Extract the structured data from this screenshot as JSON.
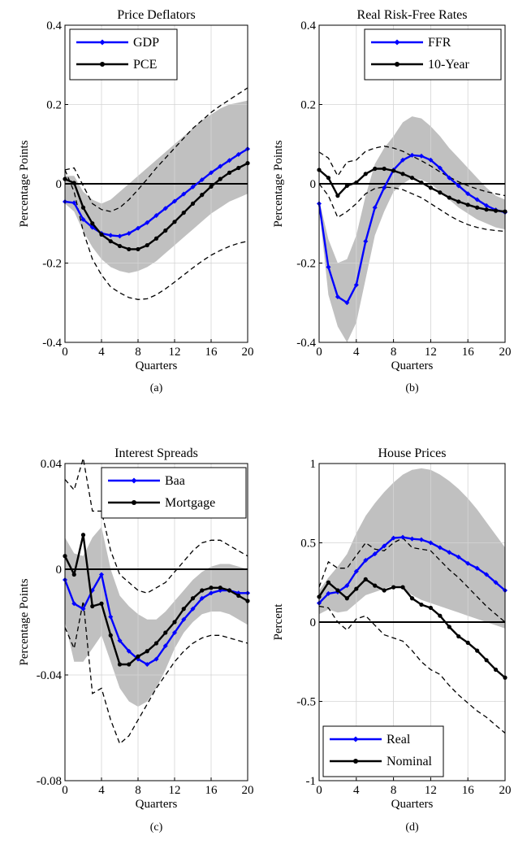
{
  "chart_data": [
    {
      "type": "line",
      "panel_caption": "(a)",
      "title": "Price Deflators",
      "xlabel": "Quarters",
      "ylabel": "Percentage Points",
      "xlim": [
        0,
        20
      ],
      "ylim": [
        -0.4,
        0.4
      ],
      "xticks": [
        0,
        4,
        8,
        12,
        16,
        20
      ],
      "yticks": [
        -0.4,
        -0.2,
        0,
        0.2,
        0.4
      ],
      "ytick_labels": [
        "-0.4",
        "-0.2",
        "0",
        "0.2",
        "0.4"
      ],
      "grid": true,
      "legend_position": "top-left",
      "x": [
        0,
        1,
        2,
        3,
        4,
        5,
        6,
        7,
        8,
        9,
        10,
        11,
        12,
        13,
        14,
        15,
        16,
        17,
        18,
        19,
        20
      ],
      "series": [
        {
          "name": "GDP",
          "color": "#0000ff",
          "marker": "diamond",
          "values": [
            -0.045,
            -0.048,
            -0.09,
            -0.11,
            -0.125,
            -0.13,
            -0.132,
            -0.125,
            -0.112,
            -0.098,
            -0.08,
            -0.062,
            -0.044,
            -0.026,
            -0.008,
            0.01,
            0.028,
            0.044,
            0.059,
            0.074,
            0.088
          ]
        },
        {
          "name": "PCE",
          "color": "#000000",
          "marker": "circle",
          "values": [
            0.012,
            0.002,
            -0.06,
            -0.1,
            -0.128,
            -0.145,
            -0.157,
            -0.165,
            -0.165,
            -0.155,
            -0.138,
            -0.118,
            -0.096,
            -0.073,
            -0.05,
            -0.028,
            -0.007,
            0.012,
            0.028,
            0.04,
            0.052
          ]
        }
      ],
      "band": {
        "color": "#c0c0c0",
        "lower": [
          -0.05,
          -0.07,
          -0.12,
          -0.16,
          -0.19,
          -0.21,
          -0.22,
          -0.225,
          -0.22,
          -0.21,
          -0.195,
          -0.175,
          -0.155,
          -0.135,
          -0.115,
          -0.095,
          -0.075,
          -0.06,
          -0.045,
          -0.035,
          -0.025
        ],
        "upper": [
          0.02,
          0.02,
          -0.02,
          -0.04,
          -0.05,
          -0.04,
          -0.02,
          0.0,
          0.02,
          0.04,
          0.06,
          0.08,
          0.1,
          0.12,
          0.14,
          0.16,
          0.175,
          0.19,
          0.2,
          0.205,
          0.21
        ]
      },
      "dashed_bounds": {
        "lower": [
          0.035,
          -0.02,
          -0.12,
          -0.19,
          -0.23,
          -0.26,
          -0.275,
          -0.287,
          -0.292,
          -0.29,
          -0.28,
          -0.265,
          -0.248,
          -0.23,
          -0.212,
          -0.195,
          -0.18,
          -0.168,
          -0.158,
          -0.15,
          -0.145
        ],
        "upper": [
          0.035,
          0.04,
          -0.005,
          -0.05,
          -0.065,
          -0.07,
          -0.06,
          -0.04,
          -0.015,
          0.012,
          0.04,
          0.065,
          0.09,
          0.115,
          0.14,
          0.16,
          0.18,
          0.197,
          0.212,
          0.227,
          0.242
        ]
      }
    },
    {
      "type": "line",
      "panel_caption": "(b)",
      "title": "Real Risk-Free Rates",
      "xlabel": "Quarters",
      "ylabel": "Percentage Points",
      "xlim": [
        0,
        20
      ],
      "ylim": [
        -0.4,
        0.4
      ],
      "xticks": [
        0,
        4,
        8,
        12,
        16,
        20
      ],
      "yticks": [
        -0.4,
        -0.2,
        0,
        0.2,
        0.4
      ],
      "ytick_labels": [
        "-0.4",
        "-0.2",
        "0",
        "0.2",
        "0.4"
      ],
      "grid": true,
      "legend_position": "top-right",
      "x": [
        0,
        1,
        2,
        3,
        4,
        5,
        6,
        7,
        8,
        9,
        10,
        11,
        12,
        13,
        14,
        15,
        16,
        17,
        18,
        19,
        20
      ],
      "series": [
        {
          "name": "FFR",
          "color": "#0000ff",
          "marker": "diamond",
          "values": [
            -0.05,
            -0.21,
            -0.285,
            -0.3,
            -0.255,
            -0.145,
            -0.06,
            -0.01,
            0.035,
            0.06,
            0.072,
            0.07,
            0.06,
            0.04,
            0.015,
            -0.005,
            -0.025,
            -0.04,
            -0.055,
            -0.066,
            -0.072
          ]
        },
        {
          "name": "10-Year",
          "color": "#000000",
          "marker": "circle",
          "values": [
            0.035,
            0.015,
            -0.03,
            -0.005,
            0.003,
            0.025,
            0.038,
            0.038,
            0.033,
            0.025,
            0.015,
            0.003,
            -0.01,
            -0.022,
            -0.035,
            -0.045,
            -0.053,
            -0.06,
            -0.065,
            -0.068,
            -0.07
          ]
        }
      ],
      "band": {
        "color": "#c0c0c0",
        "lower": [
          -0.06,
          -0.28,
          -0.36,
          -0.4,
          -0.35,
          -0.24,
          -0.13,
          -0.07,
          -0.02,
          0.0,
          0.015,
          0.01,
          0.0,
          -0.02,
          -0.04,
          -0.06,
          -0.075,
          -0.09,
          -0.1,
          -0.11,
          -0.115
        ],
        "upper": [
          -0.04,
          -0.14,
          -0.2,
          -0.19,
          -0.13,
          -0.03,
          0.05,
          0.09,
          0.12,
          0.155,
          0.17,
          0.165,
          0.145,
          0.12,
          0.09,
          0.065,
          0.04,
          0.015,
          -0.01,
          -0.03,
          -0.04
        ]
      },
      "dashed_bounds": {
        "lower": [
          0.0,
          -0.03,
          -0.085,
          -0.07,
          -0.05,
          -0.025,
          -0.012,
          -0.008,
          -0.01,
          -0.015,
          -0.025,
          -0.035,
          -0.05,
          -0.065,
          -0.08,
          -0.093,
          -0.103,
          -0.11,
          -0.115,
          -0.118,
          -0.12
        ],
        "upper": [
          0.08,
          0.065,
          0.02,
          0.055,
          0.06,
          0.082,
          0.09,
          0.095,
          0.09,
          0.082,
          0.07,
          0.058,
          0.045,
          0.03,
          0.017,
          0.005,
          -0.005,
          -0.013,
          -0.02,
          -0.025,
          -0.03
        ]
      }
    },
    {
      "type": "line",
      "panel_caption": "(c)",
      "title": "Interest Spreads",
      "xlabel": "Quarters",
      "ylabel": "Percentage Points",
      "xlim": [
        0,
        20
      ],
      "ylim": [
        -0.08,
        0.04
      ],
      "xticks": [
        0,
        4,
        8,
        12,
        16,
        20
      ],
      "yticks": [
        -0.08,
        -0.04,
        0,
        0.04
      ],
      "ytick_labels": [
        "-0.08",
        "-0.04",
        "0",
        "0.04"
      ],
      "grid": true,
      "legend_position": "top-right",
      "x": [
        0,
        1,
        2,
        3,
        4,
        5,
        6,
        7,
        8,
        9,
        10,
        11,
        12,
        13,
        14,
        15,
        16,
        17,
        18,
        19,
        20
      ],
      "series": [
        {
          "name": "Baa",
          "color": "#0000ff",
          "marker": "diamond",
          "values": [
            -0.004,
            -0.013,
            -0.015,
            -0.008,
            -0.002,
            -0.018,
            -0.027,
            -0.031,
            -0.034,
            -0.036,
            -0.034,
            -0.029,
            -0.024,
            -0.019,
            -0.015,
            -0.011,
            -0.009,
            -0.008,
            -0.008,
            -0.009,
            -0.009
          ]
        },
        {
          "name": "Mortgage",
          "color": "#000000",
          "marker": "circle",
          "values": [
            0.005,
            -0.002,
            0.013,
            -0.014,
            -0.013,
            -0.025,
            -0.036,
            -0.036,
            -0.033,
            -0.031,
            -0.028,
            -0.024,
            -0.02,
            -0.015,
            -0.011,
            -0.008,
            -0.007,
            -0.007,
            -0.008,
            -0.01,
            -0.012
          ]
        }
      ],
      "band": {
        "color": "#c0c0c0",
        "lower": [
          -0.02,
          -0.035,
          -0.035,
          -0.03,
          -0.025,
          -0.035,
          -0.045,
          -0.05,
          -0.052,
          -0.05,
          -0.045,
          -0.038,
          -0.03,
          -0.024,
          -0.02,
          -0.017,
          -0.016,
          -0.016,
          -0.017,
          -0.019,
          -0.021
        ],
        "upper": [
          0.012,
          0.006,
          0.005,
          0.012,
          0.016,
          0.0,
          -0.01,
          -0.014,
          -0.017,
          -0.019,
          -0.019,
          -0.016,
          -0.012,
          -0.008,
          -0.004,
          -0.001,
          0.001,
          0.002,
          0.002,
          0.001,
          0.0
        ]
      },
      "dashed_bounds": {
        "lower": [
          -0.022,
          -0.03,
          -0.012,
          -0.047,
          -0.045,
          -0.057,
          -0.066,
          -0.063,
          -0.057,
          -0.051,
          -0.045,
          -0.04,
          -0.035,
          -0.031,
          -0.028,
          -0.026,
          -0.025,
          -0.025,
          -0.026,
          -0.027,
          -0.028
        ],
        "upper": [
          0.034,
          0.03,
          0.042,
          0.022,
          0.022,
          0.007,
          -0.002,
          -0.005,
          -0.008,
          -0.009,
          -0.007,
          -0.005,
          -0.001,
          0.003,
          0.007,
          0.01,
          0.011,
          0.011,
          0.009,
          0.007,
          0.005
        ]
      }
    },
    {
      "type": "line",
      "panel_caption": "(d)",
      "title": "House Prices",
      "xlabel": "Quarters",
      "ylabel": "Percent",
      "xlim": [
        0,
        20
      ],
      "ylim": [
        -1,
        1
      ],
      "xticks": [
        0,
        4,
        8,
        12,
        16,
        20
      ],
      "yticks": [
        -1,
        -0.5,
        0,
        0.5,
        1
      ],
      "ytick_labels": [
        "-1",
        "-0.5",
        "0",
        "0.5",
        "1"
      ],
      "grid": true,
      "legend_position": "bottom-left",
      "x": [
        0,
        1,
        2,
        3,
        4,
        5,
        6,
        7,
        8,
        9,
        10,
        11,
        12,
        13,
        14,
        15,
        16,
        17,
        18,
        19,
        20
      ],
      "series": [
        {
          "name": "Real",
          "color": "#0000ff",
          "marker": "diamond",
          "values": [
            0.12,
            0.18,
            0.19,
            0.23,
            0.32,
            0.39,
            0.43,
            0.48,
            0.53,
            0.535,
            0.525,
            0.52,
            0.5,
            0.47,
            0.44,
            0.41,
            0.37,
            0.34,
            0.3,
            0.25,
            0.2
          ]
        },
        {
          "name": "Nominal",
          "color": "#000000",
          "marker": "circle",
          "values": [
            0.16,
            0.25,
            0.2,
            0.15,
            0.21,
            0.27,
            0.23,
            0.2,
            0.22,
            0.22,
            0.15,
            0.11,
            0.09,
            0.04,
            -0.03,
            -0.09,
            -0.13,
            -0.18,
            -0.24,
            -0.3,
            -0.35
          ]
        }
      ],
      "band": {
        "color": "#c0c0c0",
        "lower": [
          0.05,
          0.08,
          0.06,
          0.07,
          0.12,
          0.17,
          0.19,
          0.21,
          0.23,
          0.21,
          0.17,
          0.14,
          0.12,
          0.1,
          0.08,
          0.06,
          0.04,
          0.02,
          0.0,
          -0.02,
          -0.04
        ],
        "upper": [
          0.2,
          0.28,
          0.35,
          0.43,
          0.56,
          0.67,
          0.75,
          0.82,
          0.88,
          0.93,
          0.96,
          0.97,
          0.96,
          0.93,
          0.89,
          0.84,
          0.78,
          0.71,
          0.63,
          0.55,
          0.47
        ]
      },
      "dashed_bounds": {
        "lower": [
          0.1,
          0.09,
          0.0,
          -0.05,
          0.02,
          0.04,
          -0.02,
          -0.08,
          -0.1,
          -0.12,
          -0.18,
          -0.25,
          -0.3,
          -0.33,
          -0.4,
          -0.46,
          -0.51,
          -0.56,
          -0.6,
          -0.65,
          -0.7
        ],
        "upper": [
          0.22,
          0.38,
          0.34,
          0.34,
          0.42,
          0.5,
          0.46,
          0.45,
          0.5,
          0.53,
          0.47,
          0.46,
          0.45,
          0.39,
          0.33,
          0.28,
          0.22,
          0.16,
          0.1,
          0.05,
          0.0
        ]
      }
    }
  ]
}
